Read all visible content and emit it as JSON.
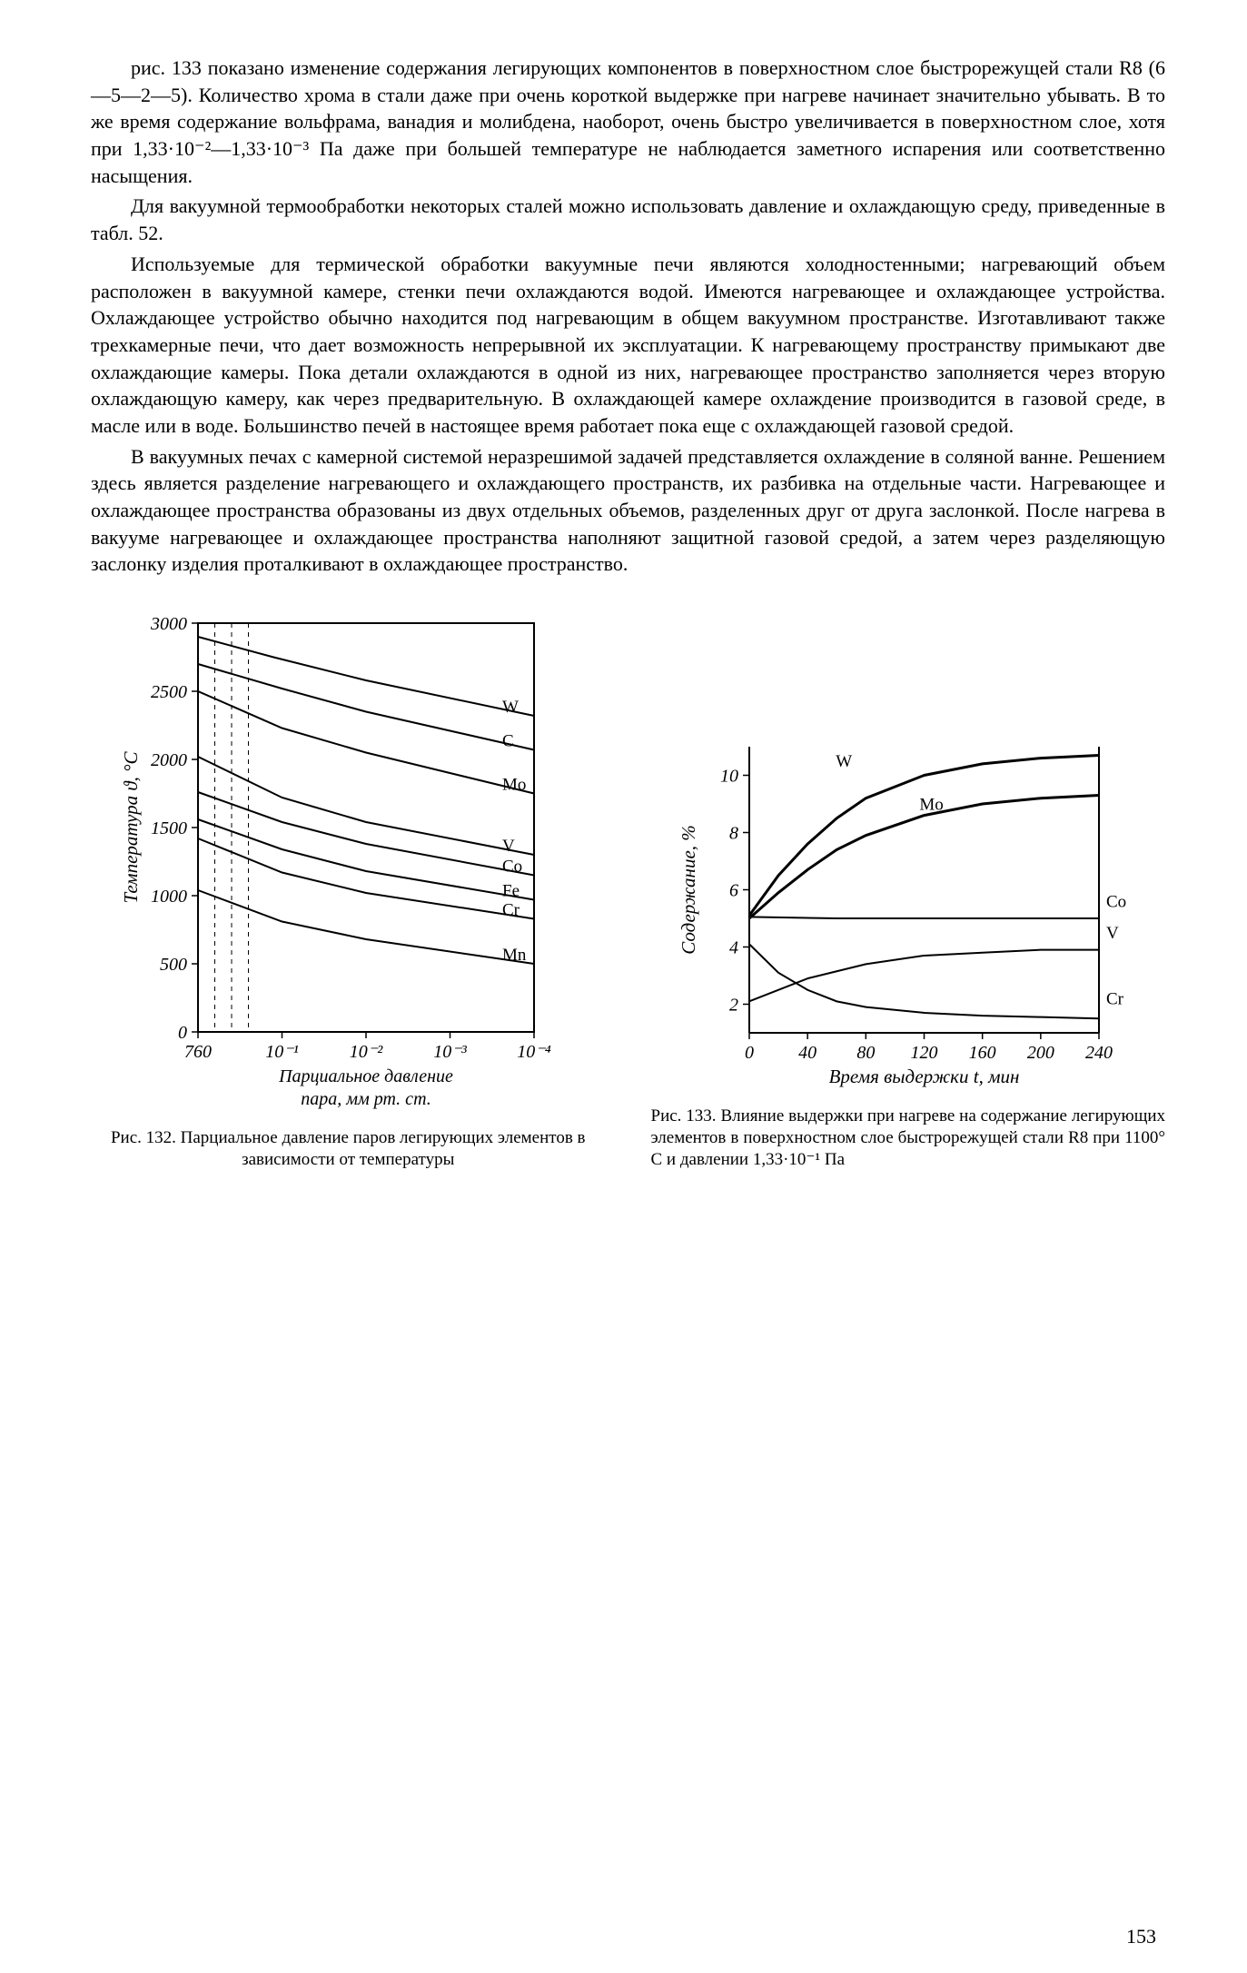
{
  "paragraphs": {
    "p1": "рис. 133 показано изменение содержания легирующих компонентов в поверхностном слое быстрорежущей стали R8 (6—5—2—5). Количество хрома в стали даже при очень короткой выдержке при нагреве начинает значительно убывать. В то же время содержание вольфрама, ванадия и молибдена, наоборот, очень быстро увеличивается в поверхностном слое, хотя при 1,33·10⁻²—1,33·10⁻³ Па даже при большей температуре не наблюдается заметного испарения или соответственно насыщения.",
    "p2": "Для вакуумной термообработки некоторых сталей можно использовать давление и охлаждающую среду, приведенные в табл. 52.",
    "p3": "Используемые для термической обработки вакуумные печи являются холодностенными; нагревающий объем расположен в вакуумной камере, стенки печи охлаждаются водой. Имеются нагревающее и охлаждающее устройства. Охлаждающее устройство обычно находится под нагревающим в общем вакуумном пространстве. Изготавливают также трехкамерные печи, что дает возможность непрерывной их эксплуатации. К нагревающему пространству примыкают две охлаждающие камеры. Пока детали охлаждаются в одной из них, нагревающее пространство заполняется через вторую охлаждающую камеру, как через предварительную. В охлаждающей камере охлаждение производится в газовой среде, в масле или в воде. Большинство печей в настоящее время работает пока еще с охлаждающей газовой средой.",
    "p4": "В вакуумных печах с камерной системой неразрешимой задачей представляется охлаждение в соляной ванне. Решением здесь является разделение нагревающего и охлаждающего пространств, их разбивка на отдельные части. Нагревающее и охлаждающее пространства образованы из двух отдельных объемов, разделенных друг от друга заслонкой. После нагрева в вакууме нагревающее и охлаждающее пространства наполняют защитной газовой средой, а затем через разделяющую заслонку изделия проталкивают в охлаждающее пространство."
  },
  "fig132": {
    "caption": "Рис. 132. Парциальное давление паров легирующих элементов в зависимости от температуры",
    "ylabel": "Температура ϑ, °C",
    "xlabel1": "Парциальное давление",
    "xlabel2": "пара, мм рт. ст.",
    "yticks": [
      "0",
      "500",
      "1000",
      "1500",
      "2000",
      "2500",
      "3000"
    ],
    "yvals": [
      0,
      500,
      1000,
      1500,
      2000,
      2500,
      3000
    ],
    "xticks": [
      "760",
      "10⁻¹",
      "10⁻²",
      "10⁻³",
      "10⁻⁴"
    ],
    "xvals": [
      0,
      1,
      2,
      3,
      4
    ],
    "ylim": [
      0,
      3000
    ],
    "xlim": [
      0,
      4
    ],
    "curves": [
      {
        "label": "W",
        "pts": [
          [
            0.0,
            2900
          ],
          [
            0.9,
            2750
          ],
          [
            2.0,
            2580
          ],
          [
            4.0,
            2320
          ]
        ]
      },
      {
        "label": "C",
        "pts": [
          [
            0.0,
            2700
          ],
          [
            1.0,
            2520
          ],
          [
            2.0,
            2350
          ],
          [
            4.0,
            2070
          ]
        ]
      },
      {
        "label": "Mo",
        "pts": [
          [
            0.0,
            2500
          ],
          [
            1.0,
            2230
          ],
          [
            2.0,
            2050
          ],
          [
            4.0,
            1750
          ]
        ]
      },
      {
        "label": "V",
        "pts": [
          [
            0.0,
            2020
          ],
          [
            1.0,
            1720
          ],
          [
            2.0,
            1540
          ],
          [
            4.0,
            1300
          ]
        ]
      },
      {
        "label": "Co",
        "pts": [
          [
            0.0,
            1760
          ],
          [
            1.0,
            1540
          ],
          [
            2.0,
            1380
          ],
          [
            4.0,
            1150
          ]
        ]
      },
      {
        "label": "Fe",
        "pts": [
          [
            0.0,
            1560
          ],
          [
            1.0,
            1340
          ],
          [
            2.0,
            1180
          ],
          [
            4.0,
            970
          ]
        ]
      },
      {
        "label": "Cr",
        "pts": [
          [
            0.0,
            1420
          ],
          [
            1.0,
            1170
          ],
          [
            2.0,
            1020
          ],
          [
            4.0,
            830
          ]
        ]
      },
      {
        "label": "Mn",
        "pts": [
          [
            0.0,
            1040
          ],
          [
            1.0,
            810
          ],
          [
            2.0,
            680
          ],
          [
            4.0,
            500
          ]
        ]
      }
    ],
    "dashed_x": [
      0.2,
      0.4,
      0.6
    ],
    "line_color": "#000000",
    "line_width": 2,
    "tick_fontsize": 20
  },
  "fig133": {
    "caption": "Рис. 133. Влияние выдержки при нагреве на содержание легирующих элементов в поверхностном слое быстрорежущей стали R8 при 1100° С и давлении 1,33·10⁻¹ Па",
    "ylabel": "Содержание, %",
    "xlabel": "Время выдержки t, мин",
    "yticks": [
      "2",
      "4",
      "6",
      "8",
      "10"
    ],
    "yvals": [
      2,
      4,
      6,
      8,
      10
    ],
    "xticks": [
      "0",
      "40",
      "80",
      "120",
      "160",
      "200",
      "240"
    ],
    "xvals": [
      0,
      40,
      80,
      120,
      160,
      200,
      240
    ],
    "ylim": [
      1,
      11
    ],
    "xlim": [
      0,
      240
    ],
    "curves": [
      {
        "label": "W",
        "pts": [
          [
            0,
            5.1
          ],
          [
            20,
            6.5
          ],
          [
            40,
            7.6
          ],
          [
            60,
            8.5
          ],
          [
            80,
            9.2
          ],
          [
            120,
            10.0
          ],
          [
            160,
            10.4
          ],
          [
            200,
            10.6
          ],
          [
            240,
            10.7
          ]
        ],
        "width": 3
      },
      {
        "label": "Mo",
        "pts": [
          [
            0,
            5.0
          ],
          [
            20,
            5.9
          ],
          [
            40,
            6.7
          ],
          [
            60,
            7.4
          ],
          [
            80,
            7.9
          ],
          [
            120,
            8.6
          ],
          [
            160,
            9.0
          ],
          [
            200,
            9.2
          ],
          [
            240,
            9.3
          ]
        ],
        "width": 3
      },
      {
        "label": "Co",
        "pts": [
          [
            0,
            5.05
          ],
          [
            60,
            5.0
          ],
          [
            120,
            5.0
          ],
          [
            180,
            5.0
          ],
          [
            240,
            5.0
          ]
        ],
        "width": 2
      },
      {
        "label": "V",
        "pts": [
          [
            0,
            2.1
          ],
          [
            40,
            2.9
          ],
          [
            80,
            3.4
          ],
          [
            120,
            3.7
          ],
          [
            160,
            3.8
          ],
          [
            200,
            3.9
          ],
          [
            240,
            3.9
          ]
        ],
        "width": 2
      },
      {
        "label": "Cr",
        "pts": [
          [
            0,
            4.1
          ],
          [
            20,
            3.1
          ],
          [
            40,
            2.5
          ],
          [
            60,
            2.1
          ],
          [
            80,
            1.9
          ],
          [
            120,
            1.7
          ],
          [
            160,
            1.6
          ],
          [
            200,
            1.55
          ],
          [
            240,
            1.5
          ]
        ],
        "width": 2
      }
    ],
    "line_color": "#000000",
    "tick_fontsize": 20
  },
  "page_number": "153",
  "colors": {
    "text": "#000000",
    "bg": "#ffffff"
  }
}
